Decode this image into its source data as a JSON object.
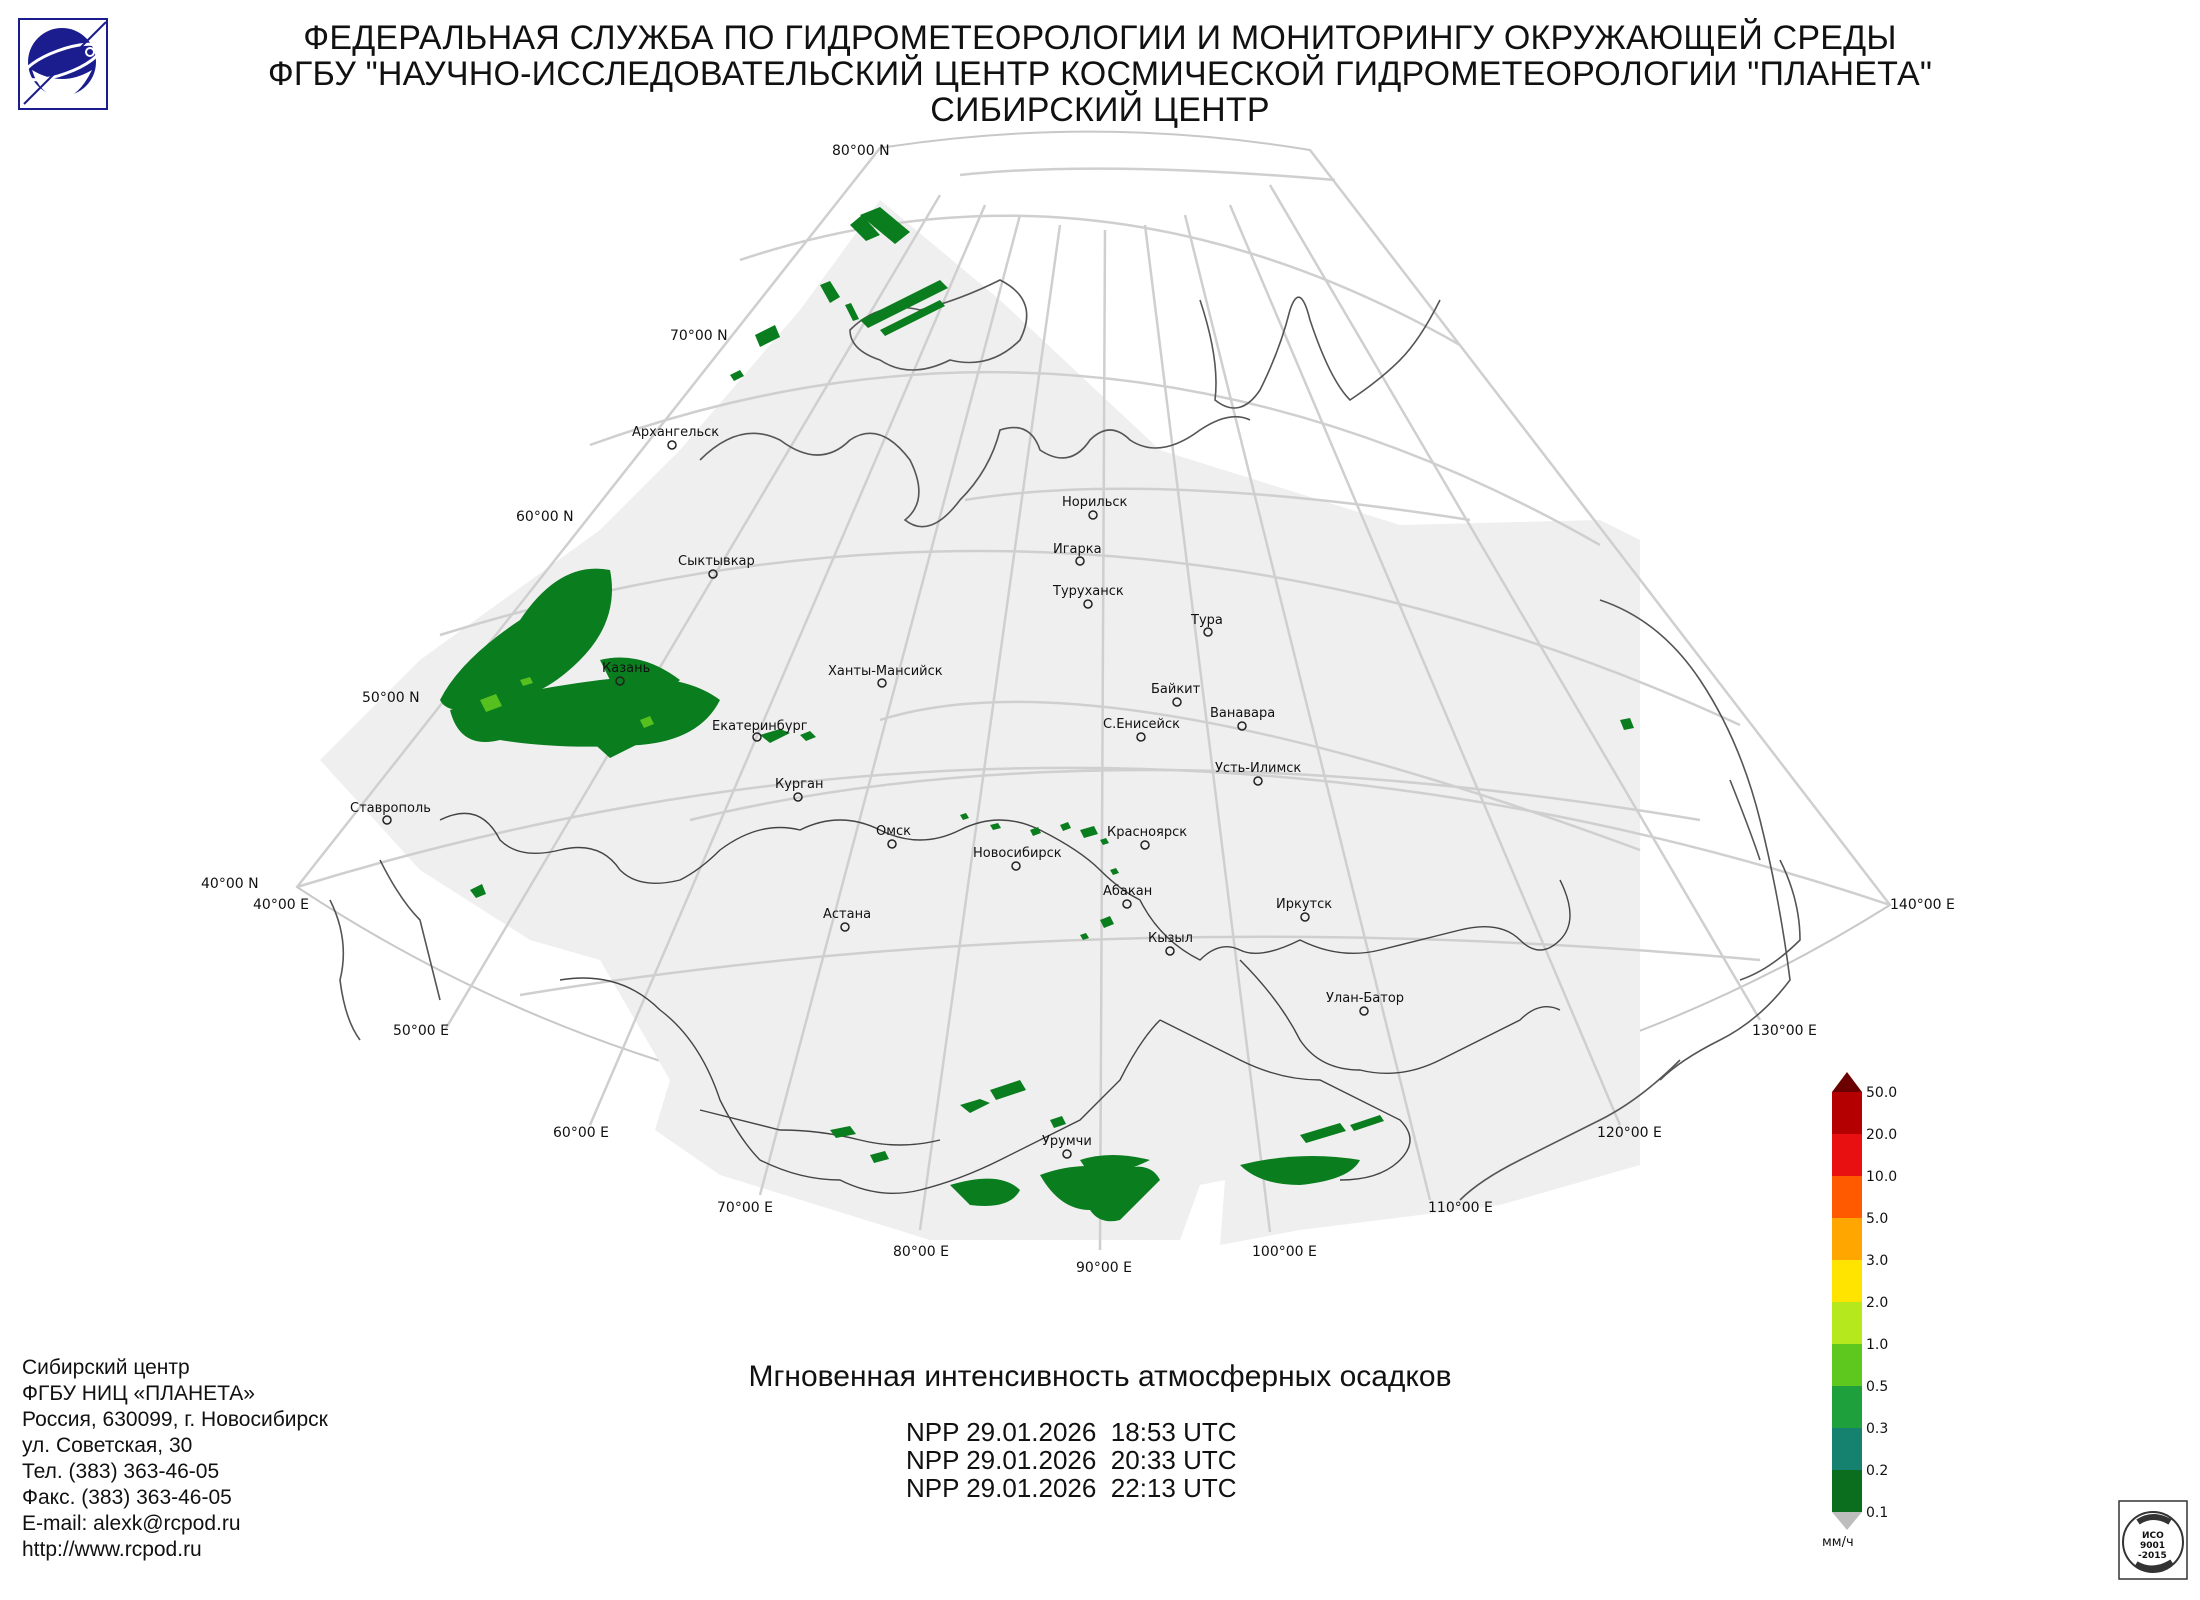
{
  "header": {
    "line1": "ФЕДЕРАЛЬНАЯ СЛУЖБА ПО ГИДРОМЕТЕОРОЛОГИИ И МОНИТОРИНГУ ОКРУЖАЮЩЕЙ СРЕДЫ",
    "line2": "ФГБУ \"НАУЧНО-ИССЛЕДОВАТЕЛЬСКИЙ ЦЕНТР КОСМИЧЕСКОЙ ГИДРОМЕТЕОРОЛОГИИ \"ПЛАНЕТА\"",
    "line3": "СИБИРСКИЙ ЦЕНТР"
  },
  "map": {
    "lat_labels": [
      "80°00 N",
      "70°00 N",
      "60°00 N",
      "50°00 N",
      "40°00 N"
    ],
    "lon_labels": [
      "40°00 E",
      "50°00 E",
      "60°00 E",
      "70°00 E",
      "80°00 E",
      "90°00 E",
      "100°00 E",
      "110°00 E",
      "120°00 E",
      "130°00 E",
      "140°00 E"
    ],
    "cities": [
      {
        "name": "Архангельск"
      },
      {
        "name": "Сыктывкар"
      },
      {
        "name": "Казань"
      },
      {
        "name": "Екатеринбург"
      },
      {
        "name": "Ставрополь"
      },
      {
        "name": "Курган"
      },
      {
        "name": "Ханты-Мансийск"
      },
      {
        "name": "Омск"
      },
      {
        "name": "Астана"
      },
      {
        "name": "Новосибирск"
      },
      {
        "name": "Норильск"
      },
      {
        "name": "Игарка"
      },
      {
        "name": "Туруханск"
      },
      {
        "name": "Тура"
      },
      {
        "name": "Байкит"
      },
      {
        "name": "Ванавара"
      },
      {
        "name": "С.Енисейск"
      },
      {
        "name": "Усть-Илимск"
      },
      {
        "name": "Красноярск"
      },
      {
        "name": "Абакан"
      },
      {
        "name": "Кызыл"
      },
      {
        "name": "Иркутск"
      },
      {
        "name": "Улан-Батор"
      },
      {
        "name": "Урумчи"
      }
    ]
  },
  "legend": {
    "values": [
      "50.0",
      "20.0",
      "10.0",
      "5.0",
      "3.0",
      "2.0",
      "1.0",
      "0.5",
      "0.3",
      "0.2",
      "0.1"
    ],
    "colors": [
      "#b40000",
      "#e81010",
      "#ff5a00",
      "#ffa600",
      "#ffe400",
      "#b6e81e",
      "#5ec81e",
      "#1ea03c",
      "#14826e",
      "#0a6e1e"
    ],
    "unit": "мм/ч"
  },
  "product": {
    "title": "Мгновенная интенсивность атмосферных осадков",
    "passes": [
      "NPP 29.01.2026  18:53 UTC",
      "NPP 29.01.2026  20:33 UTC",
      "NPP 29.01.2026  22:13 UTC"
    ]
  },
  "org": {
    "lines": [
      "Сибирский центр",
      "ФГБУ НИЦ «ПЛАНЕТА»",
      "Россия, 630099, г. Новосибирск",
      "ул. Советская, 30",
      "Тел. (383) 363-46-05",
      "Факс. (383) 363-46-05",
      "E-mail: alexk@rcpod.ru",
      "http://www.rcpod.ru"
    ]
  },
  "iso_badge": {
    "text1": "ИСО",
    "text2": "9001",
    "text3": "-2015"
  }
}
